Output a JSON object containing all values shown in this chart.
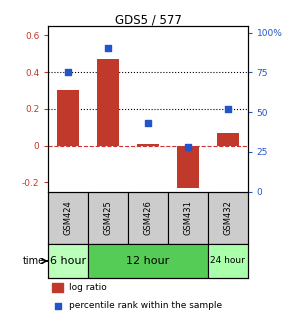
{
  "title": "GDS5 / 577",
  "categories": [
    "GSM424",
    "GSM425",
    "GSM426",
    "GSM431",
    "GSM432"
  ],
  "log_ratio": [
    0.3,
    0.47,
    0.01,
    -0.23,
    0.07
  ],
  "percentile_rank": [
    75,
    90,
    43,
    28,
    52
  ],
  "bar_color": "#c0392b",
  "dot_color": "#2255cc",
  "ylim_left": [
    -0.25,
    0.65
  ],
  "ylim_right": [
    0,
    104.0
  ],
  "yticks_left": [
    -0.2,
    0.0,
    0.2,
    0.4,
    0.6
  ],
  "yticks_right": [
    0,
    25,
    50,
    75,
    100
  ],
  "ytick_labels_left": [
    "-0.2",
    "0",
    "0.2",
    "0.4",
    "0.6"
  ],
  "ytick_labels_right": [
    "0",
    "25",
    "50",
    "75",
    "100%"
  ],
  "hlines": [
    0.2,
    0.4
  ],
  "zero_line_color": "#cc3333",
  "hline_color": "black",
  "time_groups": [
    {
      "label": "6 hour",
      "span": [
        0,
        1
      ],
      "color": "#bbffbb"
    },
    {
      "label": "12 hour",
      "span": [
        1,
        4
      ],
      "color": "#55cc55"
    },
    {
      "label": "24 hour",
      "span": [
        4,
        5
      ],
      "color": "#aaffaa"
    }
  ],
  "time_label": "time",
  "legend_log_ratio": "log ratio",
  "legend_percentile": "percentile rank within the sample",
  "sample_box_color": "#cccccc",
  "background_color": "#ffffff"
}
